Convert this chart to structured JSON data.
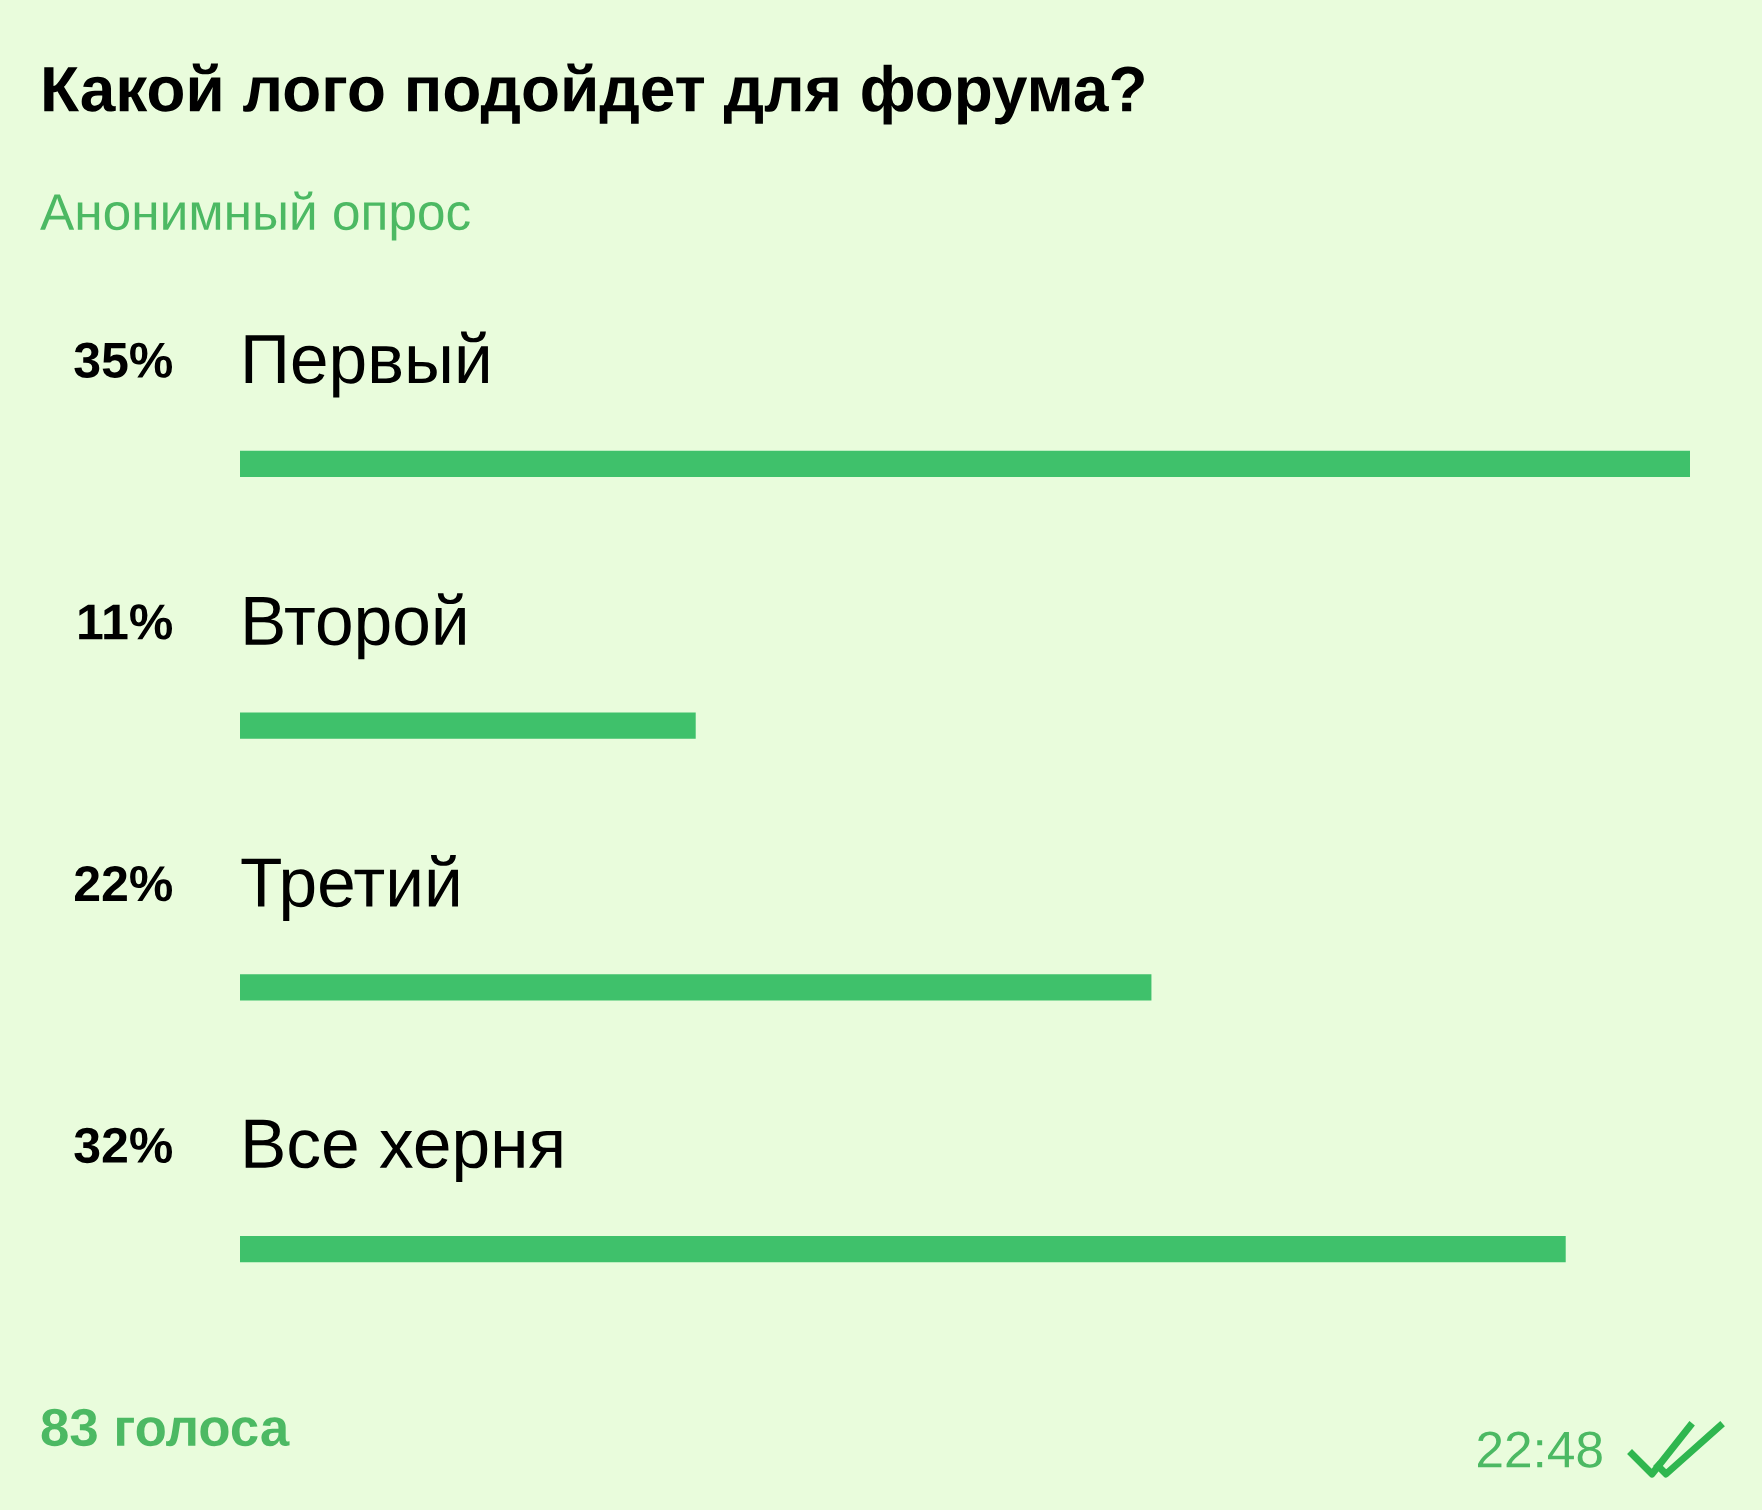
{
  "chart_data": {
    "type": "bar",
    "orientation": "horizontal",
    "title": "Какой лого подойдет для форума?",
    "subtitle": "Анонимный опрос",
    "categories": [
      "Первый",
      "Второй",
      "Третий",
      "Все херня"
    ],
    "values": [
      35,
      11,
      22,
      32
    ],
    "value_labels": [
      "35%",
      "11%",
      "22%",
      "32%"
    ],
    "color": "#3fc16b",
    "xlim": [
      0,
      35
    ],
    "tick_labels": false,
    "annotations": [
      "83 голоса",
      "22:48"
    ]
  }
}
